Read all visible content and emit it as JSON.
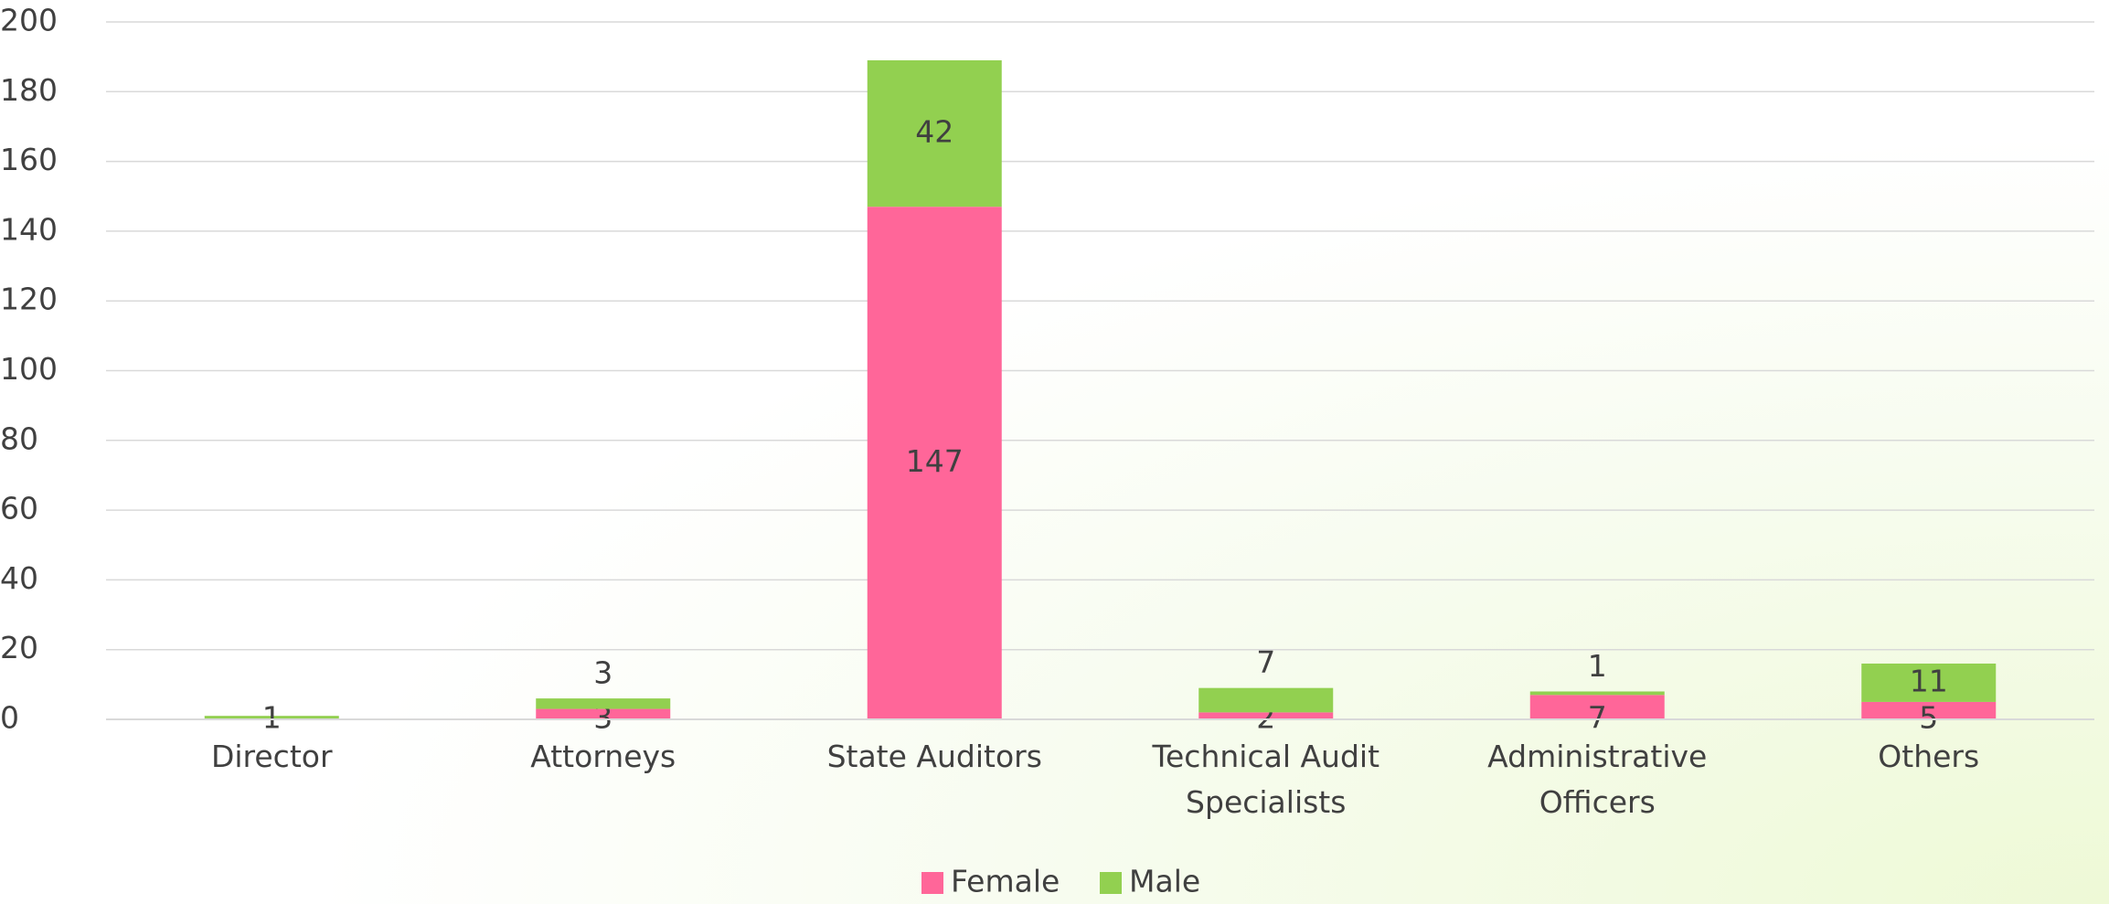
{
  "chart_data": {
    "type": "stacked_bar",
    "categories": [
      "Director",
      "Attorneys",
      "State Auditors",
      "Technical Audit Specialists",
      "Administrative Officers",
      "Others"
    ],
    "series": [
      {
        "name": "Female",
        "color": "#ff6699",
        "values": [
          null,
          3,
          147,
          2,
          7,
          5
        ]
      },
      {
        "name": "Male",
        "color": "#92d050",
        "values": [
          1,
          3,
          42,
          7,
          1,
          11
        ]
      }
    ],
    "ylim": [
      0,
      200
    ],
    "yticks": [
      0,
      20,
      40,
      60,
      80,
      100,
      120,
      140,
      160,
      180,
      200
    ],
    "grid": true,
    "legend": "bottom"
  }
}
